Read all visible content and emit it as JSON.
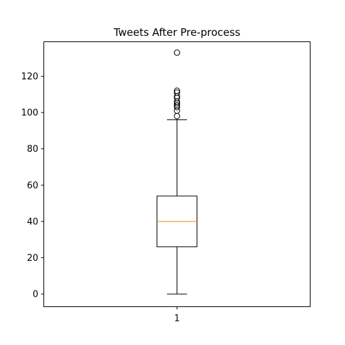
{
  "chart_data": {
    "type": "boxplot",
    "title": "Tweets After Pre-process",
    "xlabel": "",
    "ylabel": "",
    "categories": [
      "1"
    ],
    "ylim": [
      -7,
      139
    ],
    "yticks": [
      0,
      20,
      40,
      60,
      80,
      100,
      120
    ],
    "grid": false,
    "series": [
      {
        "category": "1",
        "whisker_low": 0,
        "q1": 26,
        "median": 40,
        "q3": 54,
        "whisker_high": 96,
        "outliers": [
          98,
          101,
          103,
          104,
          105,
          106,
          108,
          109,
          111,
          112,
          133
        ]
      }
    ],
    "colors": {
      "box": "#000000",
      "median": "#ff7f0e",
      "outlier_edge": "#000000"
    }
  }
}
